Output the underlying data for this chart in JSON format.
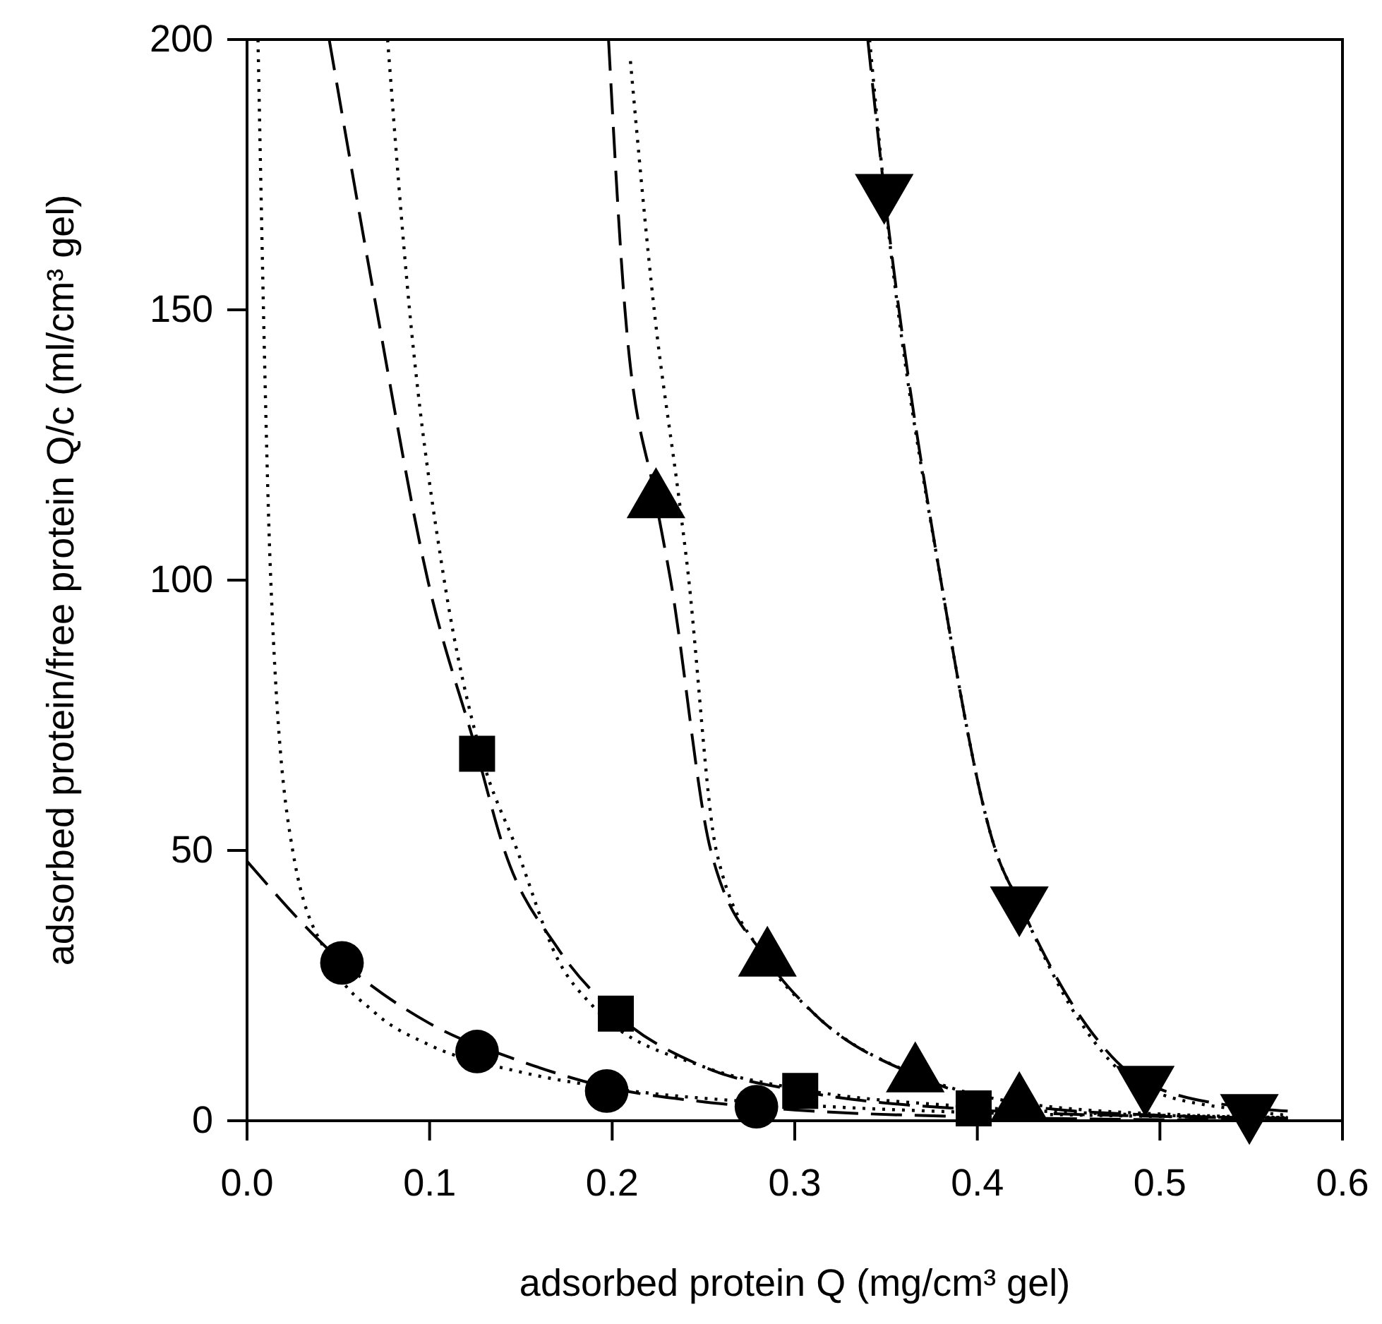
{
  "chart_data": {
    "type": "scatter",
    "xlabel": "adsorbed protein Q (mg/cm³ gel)",
    "ylabel": "adsorbed protein/free protein Q/c (ml/cm³ gel)",
    "xlim": [
      0,
      0.6
    ],
    "ylim": [
      0,
      200
    ],
    "xticks": [
      {
        "value": 0,
        "label": "0.0"
      },
      0.1,
      0.2,
      0.3,
      0.4,
      0.5,
      0.6
    ],
    "yticks": [
      0,
      50,
      100,
      150,
      200
    ],
    "grid": false,
    "series": [
      {
        "marker": "circle",
        "color": "#000000",
        "x": [
          0.052,
          0.126,
          0.197,
          0.279
        ],
        "values": [
          29.2,
          12.8,
          5.5,
          2.6
        ]
      },
      {
        "marker": "square",
        "color": "#000000",
        "x": [
          0.126,
          0.202,
          0.303,
          0.398
        ],
        "values": [
          67.9,
          19.8,
          5.5,
          2.3
        ]
      },
      {
        "marker": "triangle",
        "color": "#000000",
        "x": [
          0.224,
          0.285,
          0.366,
          0.423
        ],
        "values": [
          114.6,
          29.8,
          8.4,
          2.9
        ]
      },
      {
        "marker": "triangle-down",
        "color": "#000000",
        "x": [
          0.349,
          0.423,
          0.492,
          0.549
        ],
        "values": [
          172,
          40.2,
          7,
          1.8
        ]
      },
      {
        "type": "line",
        "line_style": "dashed",
        "marker": "none",
        "color": "#000000",
        "x": [
          0,
          0.05,
          0.1,
          0.15,
          0.2,
          0.25,
          0.3,
          0.4,
          0.5,
          0.57
        ],
        "values": [
          48,
          30,
          18,
          11,
          6,
          3.5,
          2,
          0.7,
          0.2,
          0.1
        ]
      },
      {
        "type": "line",
        "line_style": "dotted",
        "marker": "none",
        "color": "#000000",
        "x": [
          0.006,
          0.013,
          0.025,
          0.045,
          0.07,
          0.1,
          0.15,
          0.2,
          0.3,
          0.4,
          0.5,
          0.57
        ],
        "values": [
          200,
          100,
          50,
          30,
          20,
          14,
          9,
          6,
          3,
          1.5,
          0.8,
          0.5
        ]
      },
      {
        "type": "line",
        "line_style": "dashed",
        "marker": "none",
        "color": "#000000",
        "x": [
          0.045,
          0.071,
          0.099,
          0.126,
          0.141,
          0.17,
          0.202,
          0.25,
          0.303,
          0.4,
          0.5,
          0.57
        ],
        "values": [
          200,
          150,
          100,
          68,
          50,
          32,
          19.8,
          10,
          5.5,
          2,
          0.8,
          0.4
        ]
      },
      {
        "type": "line",
        "line_style": "dotted",
        "marker": "none",
        "color": "#000000",
        "x": [
          0.077,
          0.089,
          0.108,
          0.128,
          0.148,
          0.17,
          0.19,
          0.25,
          0.3,
          0.4,
          0.5,
          0.57
        ],
        "values": [
          200,
          150,
          100,
          68,
          50,
          30,
          21,
          10,
          6,
          2.5,
          1,
          0.6
        ]
      },
      {
        "type": "line",
        "line_style": "dashed",
        "marker": "none",
        "color": "#000000",
        "x": [
          0.198,
          0.207,
          0.224,
          0.232,
          0.254,
          0.285,
          0.31,
          0.366,
          0.423,
          0.5,
          0.57
        ],
        "values": [
          200,
          150,
          114.6,
          100,
          50,
          29.8,
          20,
          8.4,
          2.9,
          1,
          0.5
        ]
      },
      {
        "type": "line",
        "line_style": "dotted",
        "marker": "none",
        "color": "#000000",
        "x": [
          0.21,
          0.223,
          0.237,
          0.241,
          0.257,
          0.284,
          0.31,
          0.37,
          0.43,
          0.52,
          0.57
        ],
        "values": [
          196,
          150,
          114,
          103,
          50,
          30,
          20,
          8,
          3,
          1,
          0.6
        ]
      },
      {
        "type": "line",
        "line_style": "dashed",
        "marker": "none",
        "color": "#000000",
        "x": [
          0.34,
          0.349,
          0.38,
          0.41,
          0.423,
          0.455,
          0.492,
          0.549,
          0.57
        ],
        "values": [
          200,
          172,
          100,
          50,
          40.2,
          20,
          7,
          2.4,
          1.8
        ]
      },
      {
        "type": "line",
        "line_style": "dotted",
        "marker": "none",
        "color": "#000000",
        "x": [
          0.341,
          0.349,
          0.38,
          0.41,
          0.423,
          0.455,
          0.492,
          0.549,
          0.57
        ],
        "values": [
          200,
          172,
          100,
          50,
          40.2,
          19,
          6,
          1.8,
          1
        ]
      }
    ]
  }
}
